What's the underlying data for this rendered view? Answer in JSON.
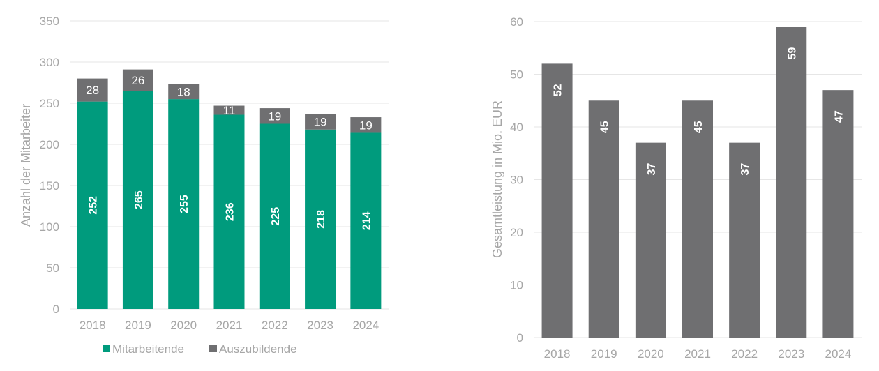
{
  "chart_data": [
    {
      "type": "bar",
      "stacked": true,
      "title": "",
      "xlabel": "",
      "ylabel": "Anzahl der Mitarbeiter",
      "ylim": [
        0,
        350
      ],
      "yticks": [
        0,
        50,
        100,
        150,
        200,
        250,
        300,
        350
      ],
      "grid": true,
      "legend": "bottom",
      "categories": [
        "2018",
        "2019",
        "2020",
        "2021",
        "2022",
        "2023",
        "2024"
      ],
      "series": [
        {
          "name": "Mitarbeitende",
          "color": "#009b7d",
          "values": [
            252,
            265,
            255,
            236,
            225,
            218,
            214
          ]
        },
        {
          "name": "Auszubildende",
          "color": "#6f6f71",
          "values": [
            28,
            26,
            18,
            11,
            19,
            19,
            19
          ]
        }
      ]
    },
    {
      "type": "bar",
      "title": "",
      "xlabel": "",
      "ylabel": "Gesamtleistung in Mio. EUR",
      "ylim": [
        0,
        60
      ],
      "yticks": [
        0,
        10,
        20,
        30,
        40,
        50,
        60
      ],
      "grid": true,
      "legend": "none",
      "categories": [
        "2018",
        "2019",
        "2020",
        "2021",
        "2022",
        "2023",
        "2024"
      ],
      "color": "#6f6f71",
      "values": [
        52,
        45,
        37,
        45,
        37,
        59,
        47
      ]
    }
  ]
}
